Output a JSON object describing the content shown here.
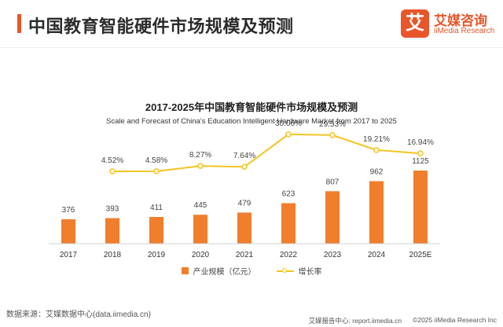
{
  "header": {
    "title": "中国教育智能硬件市场规模及预测"
  },
  "logo": {
    "mark": "艾",
    "name_cn": "艾媒咨询",
    "name_en": "iiMedia Research"
  },
  "chart_data": {
    "type": "bar",
    "title": "2017-2025年中国教育智能硬件市场规模及预测",
    "subtitle": "Scale and Forecast of China's Education Intelligent Hardware Market from 2017 to 2025",
    "categories": [
      "2017",
      "2018",
      "2019",
      "2020",
      "2021",
      "2022",
      "2023",
      "2024",
      "2025E"
    ],
    "series": [
      {
        "name": "产业规模（亿元）",
        "type": "bar",
        "color": "#f07e2c",
        "values": [
          376,
          393,
          411,
          445,
          479,
          623,
          807,
          962,
          1125
        ],
        "labels": [
          "376",
          "393",
          "411",
          "445",
          "479",
          "623",
          "807",
          "962",
          "1125"
        ]
      },
      {
        "name": "增长率",
        "type": "line",
        "color": "#f4c423",
        "values": [
          null,
          4.52,
          4.58,
          8.27,
          7.64,
          30.06,
          29.53,
          19.21,
          16.94
        ],
        "labels": [
          "",
          "4.52%",
          "4.58%",
          "8.27%",
          "7.64%",
          "30.06%",
          "29.53%",
          "19.21%",
          "16.94%"
        ]
      }
    ],
    "grid": false,
    "legend": "bottom-center"
  },
  "source": "数据来源：艾媒数据中心(data.iimedia.cn)",
  "footer": {
    "report": "艾媒报告中心: report.iimedia.cn",
    "copyright": "©2025  iiMedia Research  Inc"
  }
}
